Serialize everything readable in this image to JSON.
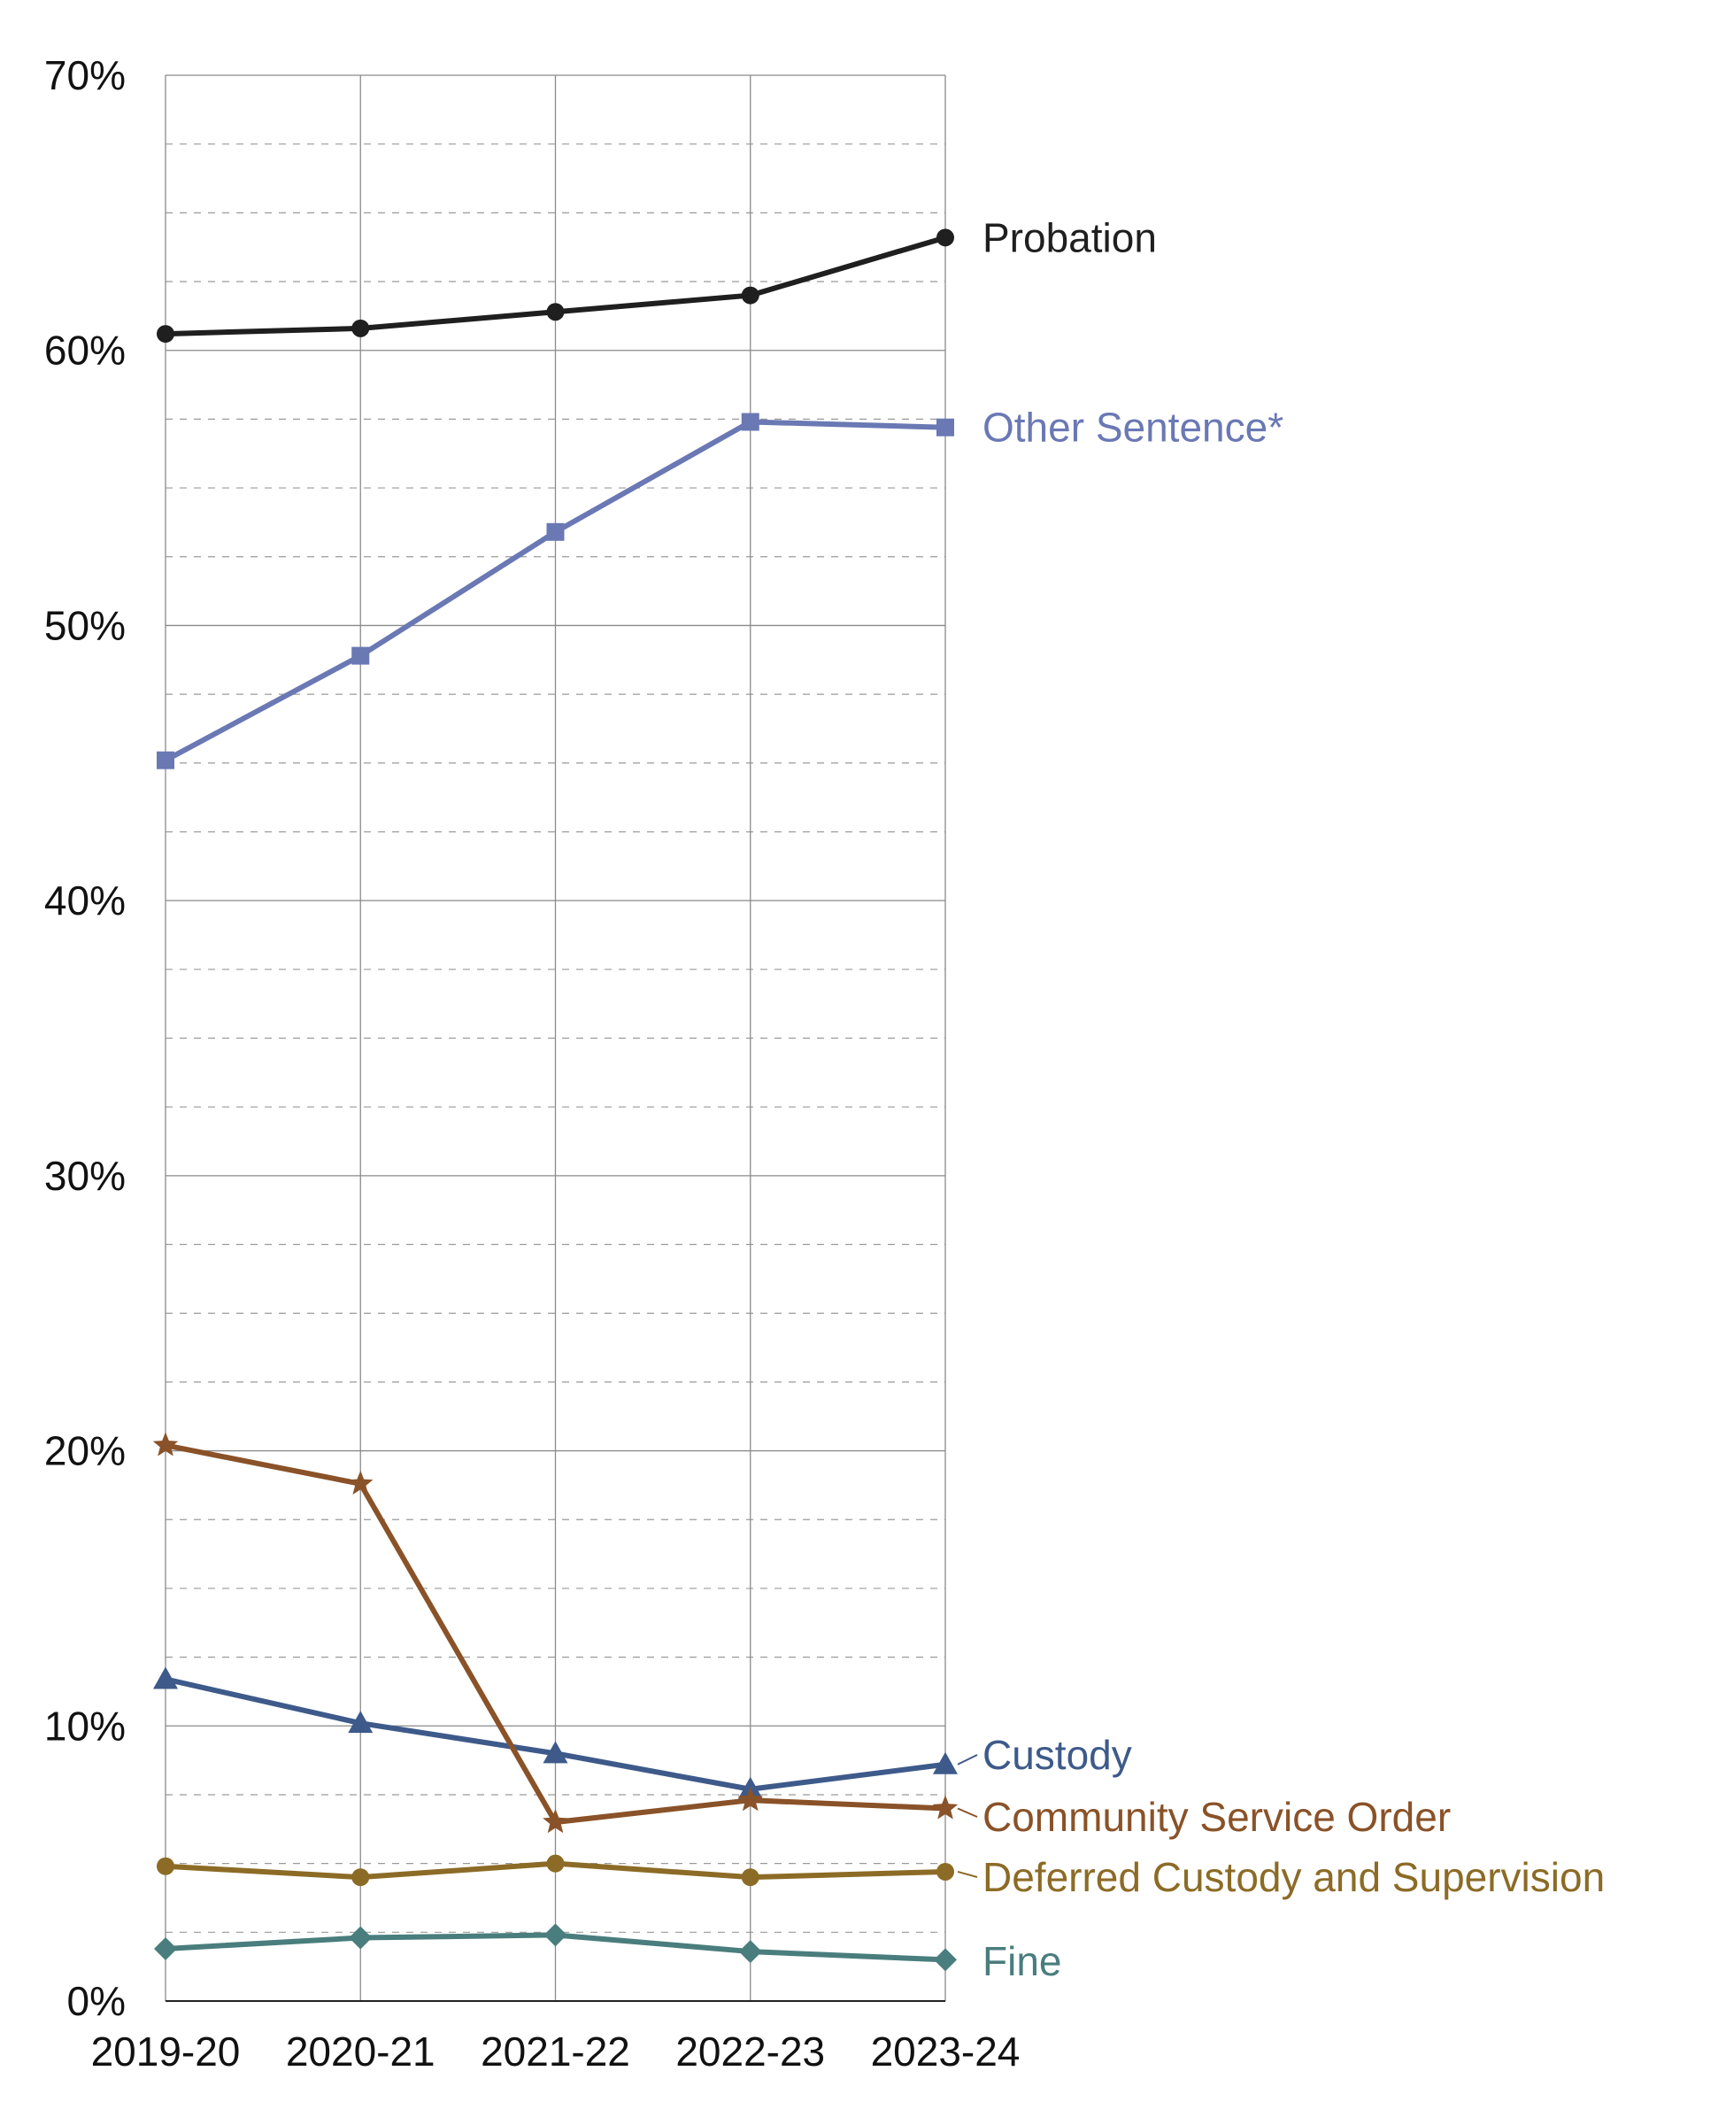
{
  "chart_data": {
    "type": "line",
    "x": [
      "2019-20",
      "2020-21",
      "2021-22",
      "2022-23",
      "2023-24"
    ],
    "ylim": [
      0,
      70
    ],
    "yticks": [
      0,
      10,
      20,
      30,
      40,
      50,
      60,
      70
    ],
    "ytick_labels": [
      "0%",
      "10%",
      "20%",
      "30%",
      "40%",
      "50%",
      "60%",
      "70%"
    ],
    "grid": true,
    "legend": "direct labels at line ends (right)",
    "series": [
      {
        "name": "Probation",
        "color": "#1f1f1f",
        "marker": "circle",
        "values": [
          60.6,
          60.8,
          61.4,
          62.0,
          64.1
        ]
      },
      {
        "name": "Other Sentence*",
        "color": "#6a78b4",
        "marker": "square",
        "values": [
          45.1,
          48.9,
          53.4,
          57.4,
          57.2
        ]
      },
      {
        "name": "Custody",
        "color": "#3d5a8a",
        "marker": "triangle",
        "values": [
          11.7,
          10.1,
          9.0,
          7.7,
          8.6
        ]
      },
      {
        "name": "Community Service Order",
        "color": "#8a5228",
        "marker": "star",
        "values": [
          20.2,
          18.8,
          6.5,
          7.3,
          7.0
        ]
      },
      {
        "name": "Deferred Custody and Supervision",
        "color": "#8c6b26",
        "marker": "circle",
        "values": [
          4.9,
          4.5,
          5.0,
          4.5,
          4.7
        ]
      },
      {
        "name": "Fine",
        "color": "#4a7d7d",
        "marker": "diamond",
        "values": [
          1.9,
          2.3,
          2.4,
          1.8,
          1.5
        ]
      }
    ]
  }
}
